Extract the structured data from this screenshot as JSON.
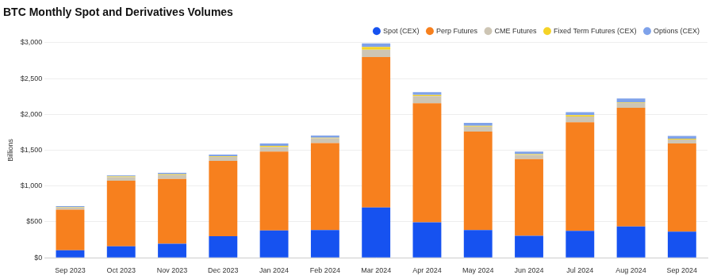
{
  "chart_data": {
    "type": "bar",
    "title": "BTC Monthly Spot and Derivatives Volumes",
    "y_label": "Billions",
    "categories": [
      "Sep 2023",
      "Oct 2023",
      "Nov 2023",
      "Dec 2023",
      "Jan 2024",
      "Feb 2024",
      "Mar 2024",
      "Apr 2024",
      "May 2024",
      "Jun 2024",
      "Jul 2024",
      "Aug 2024",
      "Sep 2024"
    ],
    "series": [
      {
        "name": "Spot (CEX)",
        "color": "#1652f0",
        "values": [
          105,
          160,
          195,
          300,
          380,
          385,
          700,
          495,
          385,
          305,
          375,
          435,
          365
        ]
      },
      {
        "name": "Perp Futures",
        "color": "#f7801e",
        "values": [
          565,
          915,
          905,
          1050,
          1100,
          1215,
          2100,
          1660,
          1375,
          1070,
          1515,
          1655,
          1230
        ]
      },
      {
        "name": "CME Futures",
        "color": "#cdc5b4",
        "values": [
          30,
          50,
          55,
          55,
          65,
          65,
          100,
          100,
          70,
          60,
          80,
          70,
          55
        ]
      },
      {
        "name": "Fixed Term Futures (CEX)",
        "color": "#f5d327",
        "values": [
          8,
          10,
          10,
          10,
          15,
          10,
          40,
          15,
          10,
          10,
          20,
          10,
          10
        ]
      },
      {
        "name": "Options (CEX)",
        "color": "#7fa2ea",
        "values": [
          12,
          15,
          20,
          25,
          35,
          30,
          50,
          40,
          40,
          35,
          40,
          50,
          40
        ]
      }
    ],
    "stacked": true,
    "ylim": [
      0,
      3000
    ],
    "yticks": [
      {
        "value": 0,
        "label": "$0"
      },
      {
        "value": 500,
        "label": "$500"
      },
      {
        "value": 1000,
        "label": "$1,000"
      },
      {
        "value": 1500,
        "label": "$1,500"
      },
      {
        "value": 2000,
        "label": "$2,000"
      },
      {
        "value": 2500,
        "label": "$2,500"
      },
      {
        "value": 3000,
        "label": "$3,000"
      }
    ],
    "grid": true,
    "legend": "top-right"
  }
}
